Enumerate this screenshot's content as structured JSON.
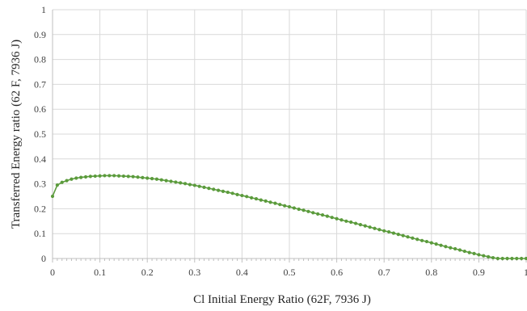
{
  "chart_data": {
    "type": "scatter",
    "title": "",
    "xlabel": "Cl Initial Energy Ratio (62F, 7936 J)",
    "ylabel": "Transferred Energy ratio (62 F, 7936 J)",
    "xlim": [
      0,
      1
    ],
    "ylim": [
      0,
      1
    ],
    "x_ticks": [
      "0",
      "0.1",
      "0.2",
      "0.3",
      "0.4",
      "0.5",
      "0.6",
      "0.7",
      "0.8",
      "0.9",
      "1"
    ],
    "y_ticks": [
      "0",
      "0.1",
      "0.2",
      "0.3",
      "0.4",
      "0.5",
      "0.6",
      "0.7",
      "0.8",
      "0.9",
      "1"
    ],
    "grid": true,
    "legend": "none",
    "marker": "circle",
    "line": "smooth",
    "series": [
      {
        "color": "#5b9b3c",
        "x": [
          0,
          0.01,
          0.02,
          0.03,
          0.04,
          0.05,
          0.06,
          0.07,
          0.08,
          0.09,
          0.1,
          0.11,
          0.12,
          0.13,
          0.14,
          0.15,
          0.16,
          0.17,
          0.18,
          0.19,
          0.2,
          0.21,
          0.22,
          0.23,
          0.24,
          0.25,
          0.26,
          0.27,
          0.28,
          0.29,
          0.3,
          0.31,
          0.32,
          0.33,
          0.34,
          0.35,
          0.36,
          0.37,
          0.38,
          0.39,
          0.4,
          0.41,
          0.42,
          0.43,
          0.44,
          0.45,
          0.46,
          0.47,
          0.48,
          0.49,
          0.5,
          0.51,
          0.52,
          0.53,
          0.54,
          0.55,
          0.56,
          0.57,
          0.58,
          0.59,
          0.6,
          0.61,
          0.62,
          0.63,
          0.64,
          0.65,
          0.66,
          0.67,
          0.68,
          0.69,
          0.7,
          0.71,
          0.72,
          0.73,
          0.74,
          0.75,
          0.76,
          0.77,
          0.78,
          0.79,
          0.8,
          0.81,
          0.82,
          0.83,
          0.84,
          0.85,
          0.86,
          0.87,
          0.88,
          0.89,
          0.9,
          0.91,
          0.92,
          0.93,
          0.94,
          0.95,
          0.96,
          0.97,
          0.98,
          0.99,
          1.0
        ],
        "y": [
          0.25,
          0.295,
          0.306,
          0.313,
          0.319,
          0.323,
          0.326,
          0.328,
          0.33,
          0.331,
          0.332,
          0.333,
          0.333,
          0.333,
          0.332,
          0.331,
          0.33,
          0.329,
          0.327,
          0.325,
          0.323,
          0.321,
          0.319,
          0.316,
          0.313,
          0.31,
          0.307,
          0.304,
          0.301,
          0.297,
          0.294,
          0.29,
          0.286,
          0.282,
          0.278,
          0.274,
          0.27,
          0.266,
          0.262,
          0.257,
          0.253,
          0.249,
          0.244,
          0.24,
          0.235,
          0.231,
          0.226,
          0.222,
          0.217,
          0.212,
          0.208,
          0.203,
          0.198,
          0.194,
          0.189,
          0.184,
          0.179,
          0.175,
          0.17,
          0.165,
          0.16,
          0.155,
          0.15,
          0.146,
          0.141,
          0.136,
          0.131,
          0.126,
          0.121,
          0.116,
          0.111,
          0.107,
          0.102,
          0.097,
          0.092,
          0.087,
          0.082,
          0.077,
          0.072,
          0.068,
          0.063,
          0.058,
          0.053,
          0.048,
          0.043,
          0.039,
          0.034,
          0.029,
          0.024,
          0.02,
          0.015,
          0.011,
          0.007,
          0.003,
          0.0,
          0.0,
          0.0,
          0.0,
          0.0,
          0.0,
          0.0
        ]
      }
    ]
  }
}
